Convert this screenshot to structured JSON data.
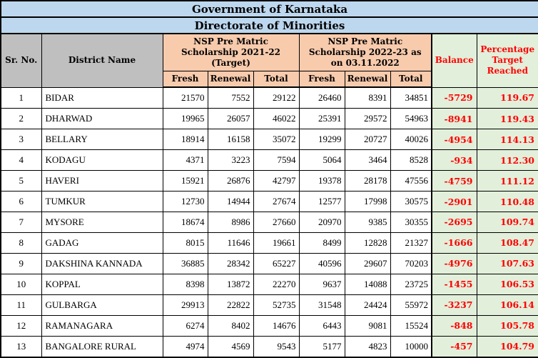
{
  "titles": {
    "line1": "Government of Karnataka",
    "line2": "Directorate of Minorities"
  },
  "header": {
    "sr_no": "Sr. No.",
    "district": "District Name",
    "group_2021": "NSP Pre Matric Scholarship 2021-22 (Target)",
    "group_2022": "NSP Pre Matric Scholarship 2022-23 as on 03.11.2022",
    "sub": [
      "Fresh",
      "Renewal",
      "Total"
    ],
    "balance": "Balance",
    "percentage": "Percentage Target Reached"
  },
  "colors": {
    "title_bg": "#BDD7EE",
    "header_gray_bg": "#BFBFBF",
    "header_peach_bg": "#F8CBAD",
    "highlight_green_bg": "#E2EFDA",
    "accent_red": "#FF0000",
    "border": "#000000"
  },
  "rows": [
    {
      "sr": "1",
      "district": "BIDAR",
      "fresh_2021": "21570",
      "renewal_2021": "7552",
      "total_2021": "29122",
      "fresh_2022": "26460",
      "renewal_2022": "8391",
      "total_2022": "34851",
      "balance": "-5729",
      "pct": "119.67"
    },
    {
      "sr": "2",
      "district": "DHARWAD",
      "fresh_2021": "19965",
      "renewal_2021": "26057",
      "total_2021": "46022",
      "fresh_2022": "25391",
      "renewal_2022": "29572",
      "total_2022": "54963",
      "balance": "-8941",
      "pct": "119.43"
    },
    {
      "sr": "3",
      "district": "BELLARY",
      "fresh_2021": "18914",
      "renewal_2021": "16158",
      "total_2021": "35072",
      "fresh_2022": "19299",
      "renewal_2022": "20727",
      "total_2022": "40026",
      "balance": "-4954",
      "pct": "114.13"
    },
    {
      "sr": "4",
      "district": "KODAGU",
      "fresh_2021": "4371",
      "renewal_2021": "3223",
      "total_2021": "7594",
      "fresh_2022": "5064",
      "renewal_2022": "3464",
      "total_2022": "8528",
      "balance": "-934",
      "pct": "112.30"
    },
    {
      "sr": "5",
      "district": "HAVERI",
      "fresh_2021": "15921",
      "renewal_2021": "26876",
      "total_2021": "42797",
      "fresh_2022": "19378",
      "renewal_2022": "28178",
      "total_2022": "47556",
      "balance": "-4759",
      "pct": "111.12"
    },
    {
      "sr": "6",
      "district": "TUMKUR",
      "fresh_2021": "12730",
      "renewal_2021": "14944",
      "total_2021": "27674",
      "fresh_2022": "12577",
      "renewal_2022": "17998",
      "total_2022": "30575",
      "balance": "-2901",
      "pct": "110.48"
    },
    {
      "sr": "7",
      "district": "MYSORE",
      "fresh_2021": "18674",
      "renewal_2021": "8986",
      "total_2021": "27660",
      "fresh_2022": "20970",
      "renewal_2022": "9385",
      "total_2022": "30355",
      "balance": "-2695",
      "pct": "109.74"
    },
    {
      "sr": "8",
      "district": "GADAG",
      "fresh_2021": "8015",
      "renewal_2021": "11646",
      "total_2021": "19661",
      "fresh_2022": "8499",
      "renewal_2022": "12828",
      "total_2022": "21327",
      "balance": "-1666",
      "pct": "108.47"
    },
    {
      "sr": "9",
      "district": "DAKSHINA KANNADA",
      "fresh_2021": "36885",
      "renewal_2021": "28342",
      "total_2021": "65227",
      "fresh_2022": "40596",
      "renewal_2022": "29607",
      "total_2022": "70203",
      "balance": "-4976",
      "pct": "107.63"
    },
    {
      "sr": "10",
      "district": "KOPPAL",
      "fresh_2021": "8398",
      "renewal_2021": "13872",
      "total_2021": "22270",
      "fresh_2022": "9637",
      "renewal_2022": "14088",
      "total_2022": "23725",
      "balance": "-1455",
      "pct": "106.53"
    },
    {
      "sr": "11",
      "district": "GULBARGA",
      "fresh_2021": "29913",
      "renewal_2021": "22822",
      "total_2021": "52735",
      "fresh_2022": "31548",
      "renewal_2022": "24424",
      "total_2022": "55972",
      "balance": "-3237",
      "pct": "106.14"
    },
    {
      "sr": "12",
      "district": "RAMANAGARA",
      "fresh_2021": "6274",
      "renewal_2021": "8402",
      "total_2021": "14676",
      "fresh_2022": "6443",
      "renewal_2022": "9081",
      "total_2022": "15524",
      "balance": "-848",
      "pct": "105.78"
    },
    {
      "sr": "13",
      "district": "BANGALORE RURAL",
      "fresh_2021": "4974",
      "renewal_2021": "4569",
      "total_2021": "9543",
      "fresh_2022": "5177",
      "renewal_2022": "4823",
      "total_2022": "10000",
      "balance": "-457",
      "pct": "104.79"
    }
  ]
}
